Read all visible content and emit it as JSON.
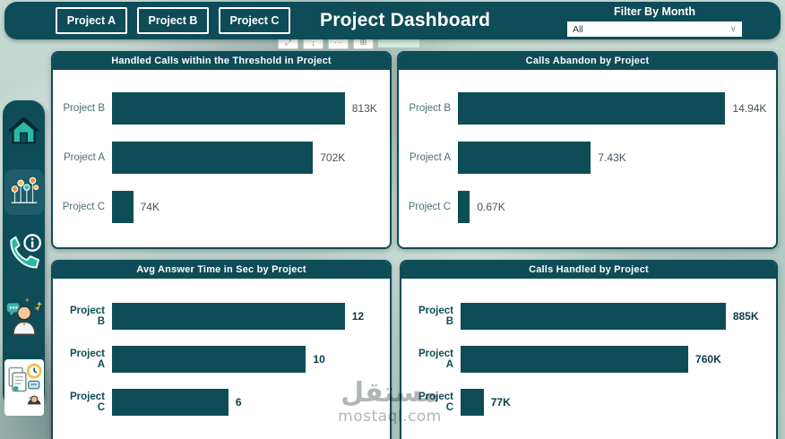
{
  "header": {
    "nav_buttons": [
      "Project A",
      "Project B",
      "Project C"
    ],
    "title": "Project Dashboard",
    "filter": {
      "label": "Filter By Month",
      "value": "All"
    }
  },
  "toolbar": {
    "tiles": [
      {
        "name": "expand-icon",
        "glyph": "⤢"
      },
      {
        "name": "download-icon",
        "glyph": "↓"
      },
      {
        "name": "more-options-icon",
        "glyph": "⋯"
      },
      {
        "name": "grid-view-icon",
        "glyph": "⊞"
      }
    ]
  },
  "sidebar": {
    "icons": [
      "home-icon",
      "scatter-chart-icon",
      "phone-info-icon",
      "support-agent-icon",
      "report-clock-icon"
    ]
  },
  "chart_data": [
    {
      "type": "bar",
      "orientation": "horizontal",
      "title": "Handled Calls within the Threshold in Project",
      "categories": [
        "Project B",
        "Project A",
        "Project C"
      ],
      "values": [
        813,
        702,
        74
      ],
      "value_labels": [
        "813K",
        "702K",
        "74K"
      ],
      "unit": "K calls",
      "xlim": [
        0,
        813
      ],
      "grid": false,
      "legend": false
    },
    {
      "type": "bar",
      "orientation": "horizontal",
      "title": "Calls Abandon by Project",
      "categories": [
        "Project B",
        "Project A",
        "Project C"
      ],
      "values": [
        14.94,
        7.43,
        0.67
      ],
      "value_labels": [
        "14.94K",
        "7.43K",
        "0.67K"
      ],
      "unit": "K calls",
      "xlim": [
        0,
        14.94
      ],
      "grid": false,
      "legend": false
    },
    {
      "type": "bar",
      "orientation": "horizontal",
      "title": "Avg Answer Time in Sec by Project",
      "categories": [
        "Project B",
        "Project A",
        "Project C"
      ],
      "values": [
        12,
        10,
        6
      ],
      "value_labels": [
        "12",
        "10",
        "6"
      ],
      "unit": "sec",
      "xlim": [
        0,
        12
      ],
      "grid": false,
      "legend": false
    },
    {
      "type": "bar",
      "orientation": "horizontal",
      "title": "Calls Handled by Project",
      "categories": [
        "Project B",
        "Project A",
        "Project C"
      ],
      "values": [
        885,
        760,
        77
      ],
      "value_labels": [
        "885K",
        "760K",
        "77K"
      ],
      "unit": "K calls",
      "xlim": [
        0,
        885
      ],
      "grid": false,
      "legend": false
    }
  ],
  "watermark": {
    "text": "مستقل",
    "subtext": "mostaql.com"
  },
  "colors": {
    "primary": "#0e4c58",
    "bar": "#0e4c58",
    "accent": "#2cb8a6",
    "card_bg": "#ffffff"
  }
}
